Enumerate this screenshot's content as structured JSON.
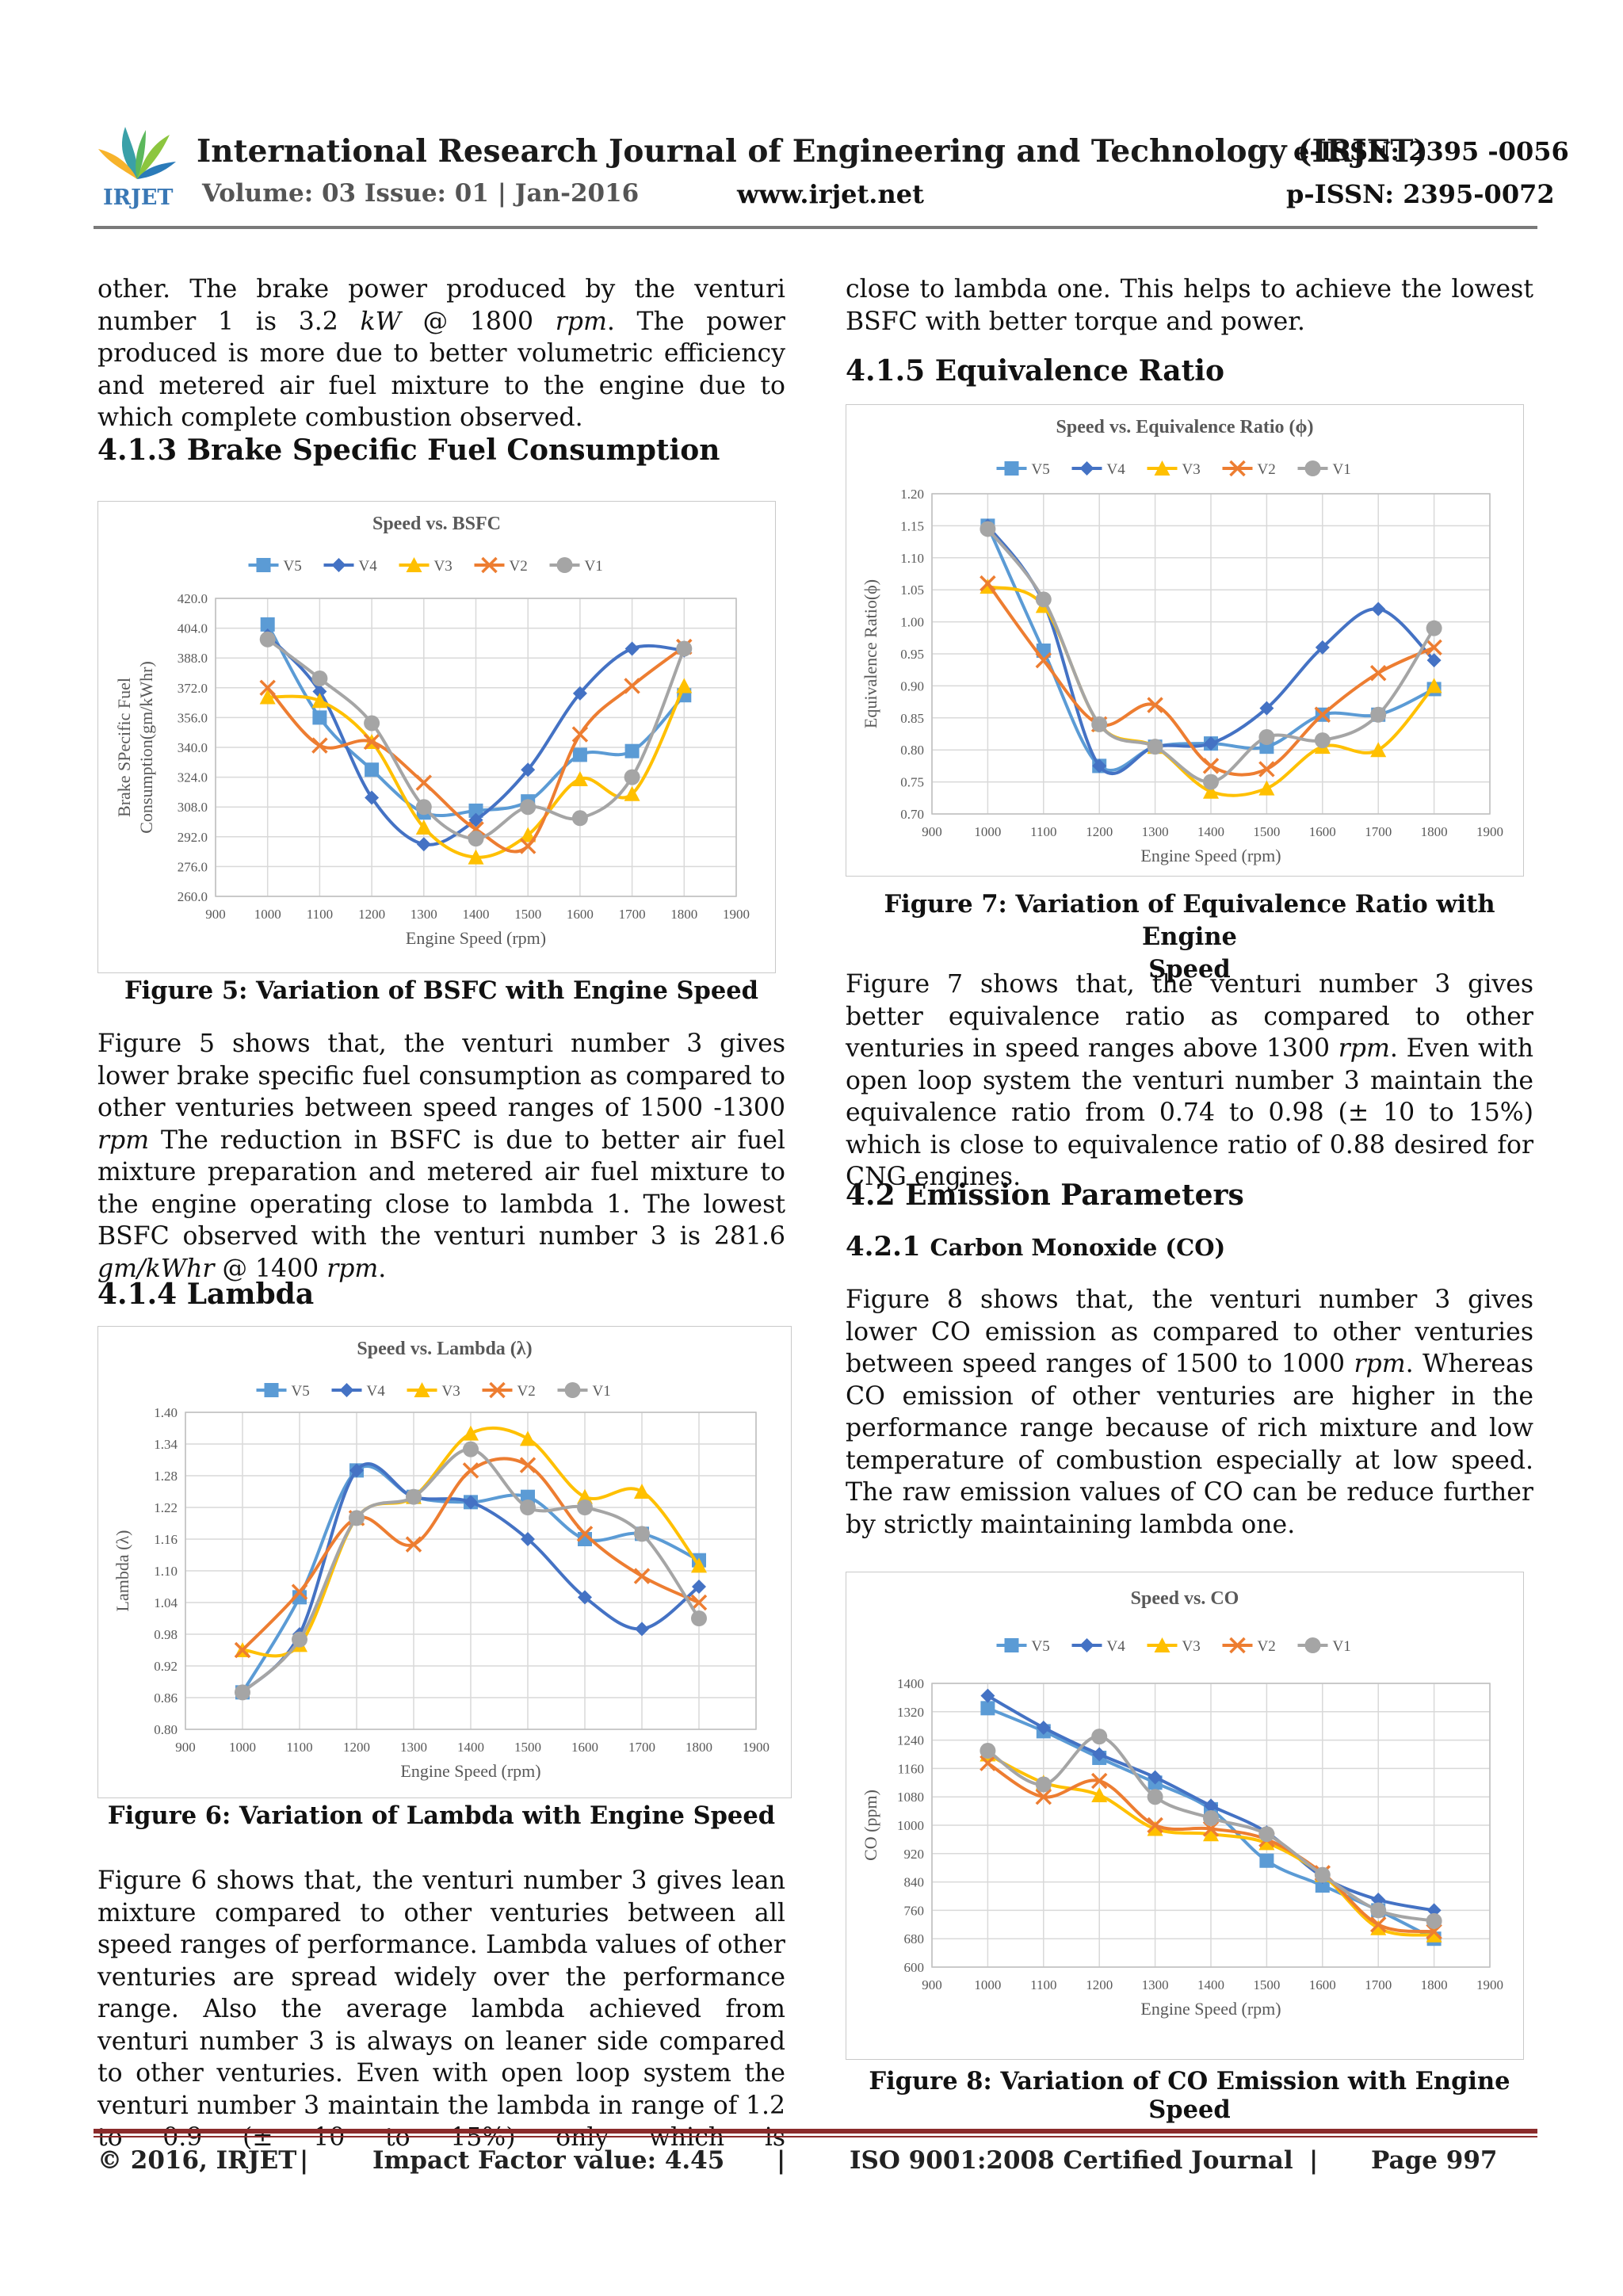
{
  "header": {
    "logo_text": "IRJET",
    "title": "International Research Journal of Engineering and Technology (IRJET)",
    "eissn": "e-ISSN: 2395 -0056",
    "volume": "Volume: 03 Issue: 01 | Jan-2016",
    "url": "www.irjet.net",
    "pissn": "p-ISSN: 2395-0072"
  },
  "left_col": {
    "p1": [
      "other. The brake power produced by the venturi number 1 is 3.2 ",
      "kW",
      " @ 1800 ",
      "rpm",
      ". The power produced is more due to better volumetric efficiency and metered air fuel mixture to the engine due to which complete combustion observed."
    ],
    "h_413": "4.1.3 Brake Specific Fuel Consumption",
    "fig5_caption_bold": "Figure 5",
    "fig5_caption_rest": ": Variation of BSFC with Engine Speed",
    "p2": [
      "Figure 5 shows that, the venturi number 3 gives lower brake specific fuel consumption as compared to other venturies between speed ranges of 1500 -1300 ",
      "rpm",
      " The reduction in BSFC is due to better air fuel mixture preparation and metered air fuel mixture to the engine operating close to lambda 1. The lowest BSFC observed with the venturi number 3 is 281.6 ",
      "gm/kWhr",
      " @ 1400 ",
      "rpm",
      "."
    ],
    "h_414": "4.1.4 Lambda",
    "fig6_caption": "Figure 6: Variation of Lambda with Engine Speed",
    "p3": "Figure 6 shows that, the venturi number 3 gives lean mixture compared to other venturies between all speed ranges of performance. Lambda values of other venturies are spread widely over the performance range. Also the average lambda achieved from venturi number 3 is always on leaner side compared to other venturies. Even with open loop system the venturi number 3 maintain the lambda in range of 1.2 to 0.9 (± 10 to 15%) only which is"
  },
  "right_col": {
    "p1": "close to lambda one. This helps to achieve the lowest BSFC with better torque and power.",
    "h_415": "4.1.5 Equivalence Ratio",
    "fig7_caption_l1": "Figure 7: Variation of Equivalence Ratio with Engine",
    "fig7_caption_l2": "Speed",
    "p2": [
      "Figure 7 shows that, the venturi number 3 gives better equivalence ratio as compared to other venturies in speed ranges above 1300 ",
      "rpm",
      ". Even with open loop system the venturi number 3 maintain the equivalence ratio from 0.74 to 0.98 (± 10 to 15%) which is close to equivalence ratio of 0.88 desired for CNG engines."
    ],
    "h_42": "4.2 Emission Parameters",
    "h_421_num": "4.2.1 ",
    "h_421_text": "Carbon Monoxide (CO)",
    "p3": [
      "Figure 8 shows that, the venturi number 3 gives lower CO emission as compared to other venturies between speed ranges of 1500 to 1000 ",
      "rpm",
      ". Whereas CO emission of other venturies are higher in the performance range because of rich mixture and low temperature of combustion especially at low speed. The raw emission values of CO can be reduce further by strictly maintaining lambda one."
    ],
    "fig8_caption_bold": "Figure 8",
    "fig8_caption_rest": ": Variation of CO Emission with Engine Speed"
  },
  "footer": {
    "copyright": "© 2016, IRJET",
    "sep": "|",
    "impact": "Impact Factor value: 4.45",
    "iso": "ISO 9001:2008 Certified Journal",
    "page": "Page 997"
  },
  "chart_data": [
    {
      "id": "bsfc",
      "type": "line",
      "title": "Speed vs. BSFC",
      "xlabel": "Engine Speed (rpm)",
      "ylabel": [
        "Brake SPecific Fuel",
        "Consumption(gm/kWhr)"
      ],
      "x": [
        1000,
        1100,
        1200,
        1300,
        1400,
        1500,
        1600,
        1700,
        1800
      ],
      "xlim": [
        900,
        1900
      ],
      "xticks": [
        "900",
        "1000",
        "1100",
        "1200",
        "1300",
        "1400",
        "1500",
        "1600",
        "1700",
        "1800",
        "1900"
      ],
      "ylim": [
        260,
        420
      ],
      "yticks": [
        "260.0",
        "276.0",
        "292.0",
        "308.0",
        "324.0",
        "340.0",
        "356.0",
        "372.0",
        "388.0",
        "404.0",
        "420.0"
      ],
      "legend": "top",
      "grid": true,
      "series": [
        {
          "name": "V5",
          "color": "#5b9bd5",
          "marker": "square",
          "values": [
            406,
            356,
            328,
            305,
            306,
            311,
            336,
            338,
            368
          ]
        },
        {
          "name": "V4",
          "color": "#4472c4",
          "marker": "diamond",
          "values": [
            400,
            370,
            313,
            288,
            301,
            328,
            369,
            393,
            392
          ]
        },
        {
          "name": "V3",
          "color": "#ffc000",
          "marker": "triangle",
          "values": [
            367,
            365,
            343,
            297,
            281,
            293,
            323,
            315,
            373
          ]
        },
        {
          "name": "V2",
          "color": "#ed7d31",
          "marker": "x",
          "values": [
            372,
            341,
            343,
            321,
            296,
            287,
            347,
            373,
            394
          ]
        },
        {
          "name": "V1",
          "color": "#a5a5a5",
          "marker": "circle",
          "values": [
            398,
            377,
            353,
            308,
            291,
            308,
            302,
            324,
            393
          ]
        }
      ]
    },
    {
      "id": "lambda",
      "type": "line",
      "title": "Speed vs. Lambda (λ)",
      "xlabel": "Engine Speed (rpm)",
      "ylabel": [
        "Lambda (λ)"
      ],
      "x": [
        1000,
        1100,
        1200,
        1300,
        1400,
        1500,
        1600,
        1700,
        1800
      ],
      "xlim": [
        900,
        1900
      ],
      "xticks": [
        "900",
        "1000",
        "1100",
        "1200",
        "1300",
        "1400",
        "1500",
        "1600",
        "1700",
        "1800",
        "1900"
      ],
      "ylim": [
        0.8,
        1.4
      ],
      "yticks": [
        "0.80",
        "0.86",
        "0.92",
        "0.98",
        "1.04",
        "1.10",
        "1.16",
        "1.22",
        "1.28",
        "1.34",
        "1.40"
      ],
      "legend": "top",
      "grid": true,
      "series": [
        {
          "name": "V5",
          "color": "#5b9bd5",
          "marker": "square",
          "values": [
            0.87,
            1.05,
            1.29,
            1.24,
            1.23,
            1.24,
            1.16,
            1.17,
            1.12
          ]
        },
        {
          "name": "V4",
          "color": "#4472c4",
          "marker": "diamond",
          "values": [
            0.87,
            0.98,
            1.29,
            1.24,
            1.23,
            1.16,
            1.05,
            0.99,
            1.07
          ]
        },
        {
          "name": "V3",
          "color": "#ffc000",
          "marker": "triangle",
          "values": [
            0.95,
            0.96,
            1.2,
            1.24,
            1.36,
            1.35,
            1.24,
            1.25,
            1.11
          ]
        },
        {
          "name": "V2",
          "color": "#ed7d31",
          "marker": "x",
          "values": [
            0.95,
            1.06,
            1.2,
            1.15,
            1.29,
            1.3,
            1.17,
            1.09,
            1.04
          ]
        },
        {
          "name": "V1",
          "color": "#a5a5a5",
          "marker": "circle",
          "values": [
            0.87,
            0.97,
            1.2,
            1.24,
            1.33,
            1.22,
            1.22,
            1.17,
            1.01
          ]
        }
      ]
    },
    {
      "id": "phi",
      "type": "line",
      "title": "Speed vs. Equivalence Ratio (ϕ)",
      "xlabel": "Engine Speed (rpm)",
      "ylabel": [
        "Equivalence Ratio(ϕ)"
      ],
      "x": [
        1000,
        1100,
        1200,
        1300,
        1400,
        1500,
        1600,
        1700,
        1800
      ],
      "xlim": [
        900,
        1900
      ],
      "xticks": [
        "900",
        "1000",
        "1100",
        "1200",
        "1300",
        "1400",
        "1500",
        "1600",
        "1700",
        "1800",
        "1900"
      ],
      "ylim": [
        0.7,
        1.2
      ],
      "yticks": [
        "0.70",
        "0.75",
        "0.80",
        "0.85",
        "0.90",
        "0.95",
        "1.00",
        "1.05",
        "1.10",
        "1.15",
        "1.20"
      ],
      "legend": "top",
      "grid": true,
      "series": [
        {
          "name": "V5",
          "color": "#5b9bd5",
          "marker": "square",
          "values": [
            1.15,
            0.955,
            0.775,
            0.805,
            0.81,
            0.805,
            0.855,
            0.855,
            0.895
          ]
        },
        {
          "name": "V4",
          "color": "#4472c4",
          "marker": "diamond",
          "values": [
            1.15,
            1.03,
            0.775,
            0.805,
            0.81,
            0.865,
            0.96,
            1.02,
            0.94
          ]
        },
        {
          "name": "V3",
          "color": "#ffc000",
          "marker": "triangle",
          "values": [
            1.055,
            1.025,
            0.84,
            0.805,
            0.735,
            0.74,
            0.805,
            0.8,
            0.9
          ]
        },
        {
          "name": "V2",
          "color": "#ed7d31",
          "marker": "x",
          "values": [
            1.06,
            0.94,
            0.84,
            0.87,
            0.775,
            0.77,
            0.855,
            0.92,
            0.96
          ]
        },
        {
          "name": "V1",
          "color": "#a5a5a5",
          "marker": "circle",
          "values": [
            1.145,
            1.035,
            0.84,
            0.805,
            0.75,
            0.82,
            0.815,
            0.855,
            0.99
          ]
        }
      ]
    },
    {
      "id": "co",
      "type": "line",
      "title": "Speed vs. CO",
      "xlabel": "Engine Speed (rpm)",
      "ylabel": [
        "CO (ppm)"
      ],
      "x": [
        1000,
        1100,
        1200,
        1300,
        1400,
        1500,
        1600,
        1700,
        1800
      ],
      "xlim": [
        900,
        1900
      ],
      "xticks": [
        "900",
        "1000",
        "1100",
        "1200",
        "1300",
        "1400",
        "1500",
        "1600",
        "1700",
        "1800",
        "1900"
      ],
      "ylim": [
        600,
        1400
      ],
      "yticks": [
        "600",
        "680",
        "760",
        "840",
        "920",
        "1000",
        "1080",
        "1160",
        "1240",
        "1320",
        "1400"
      ],
      "legend": "top",
      "grid": true,
      "series": [
        {
          "name": "V5",
          "color": "#5b9bd5",
          "marker": "square",
          "values": [
            1330,
            1265,
            1190,
            1120,
            1045,
            900,
            830,
            760,
            680
          ]
        },
        {
          "name": "V4",
          "color": "#4472c4",
          "marker": "diamond",
          "values": [
            1365,
            1275,
            1200,
            1135,
            1055,
            980,
            855,
            790,
            760
          ]
        },
        {
          "name": "V3",
          "color": "#ffc000",
          "marker": "triangle",
          "values": [
            1200,
            1120,
            1085,
            990,
            975,
            950,
            860,
            710,
            690
          ]
        },
        {
          "name": "V2",
          "color": "#ed7d31",
          "marker": "x",
          "values": [
            1175,
            1080,
            1125,
            1000,
            990,
            960,
            865,
            720,
            700
          ]
        },
        {
          "name": "V1",
          "color": "#a5a5a5",
          "marker": "circle",
          "values": [
            1210,
            1115,
            1250,
            1080,
            1020,
            975,
            860,
            760,
            730
          ]
        }
      ]
    }
  ]
}
